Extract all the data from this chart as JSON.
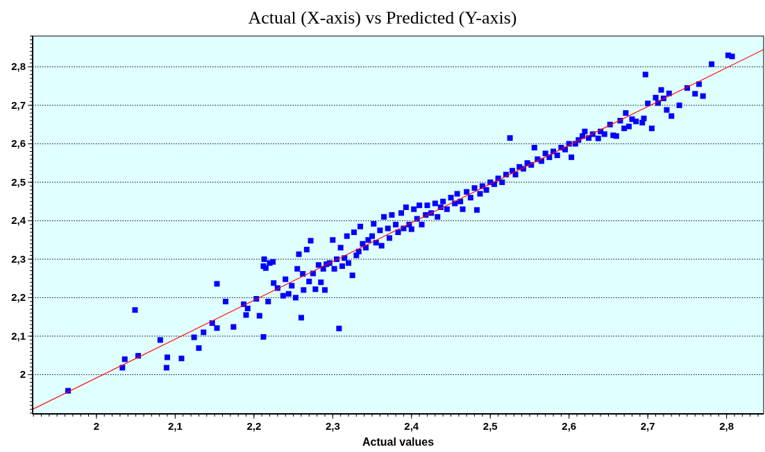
{
  "chart_data": {
    "type": "scatter",
    "title": "Actual (X-axis) vs Predicted (Y-axis)",
    "xlabel": "Actual values",
    "xlim": [
      1.919,
      2.847
    ],
    "ylim": [
      1.898,
      2.88
    ],
    "xticks": [
      {
        "value": 2,
        "label": "2"
      },
      {
        "value": 2.1,
        "label": "2,1"
      },
      {
        "value": 2.2,
        "label": "2,2"
      },
      {
        "value": 2.3,
        "label": "2,3"
      },
      {
        "value": 2.4,
        "label": "2,4"
      },
      {
        "value": 2.5,
        "label": "2,5"
      },
      {
        "value": 2.6,
        "label": "2,6"
      },
      {
        "value": 2.7,
        "label": "2,7"
      },
      {
        "value": 2.8,
        "label": "2,8"
      }
    ],
    "yticks": [
      {
        "value": 2,
        "label": "2"
      },
      {
        "value": 2.1,
        "label": "2,1"
      },
      {
        "value": 2.2,
        "label": "2,2"
      },
      {
        "value": 2.3,
        "label": "2,3"
      },
      {
        "value": 2.4,
        "label": "2,4"
      },
      {
        "value": 2.5,
        "label": "2,5"
      },
      {
        "value": 2.6,
        "label": "2,6"
      },
      {
        "value": 2.7,
        "label": "2,7"
      },
      {
        "value": 2.8,
        "label": "2,8"
      }
    ],
    "grid": "y",
    "series": [
      {
        "marker": "square",
        "color": "#0000ff",
        "x": [
          1.964,
          2.033,
          2.036,
          2.049,
          2.053,
          2.081,
          2.089,
          2.09,
          2.108,
          2.124,
          2.13,
          2.136,
          2.147,
          2.153,
          2.153,
          2.164,
          2.174,
          2.187,
          2.19,
          2.192,
          2.203,
          2.207,
          2.212,
          2.213,
          2.212,
          2.215,
          2.218,
          2.22,
          2.224,
          2.225,
          2.23,
          2.237,
          2.24,
          2.244,
          2.248,
          2.253,
          2.255,
          2.257,
          2.26,
          2.262,
          2.263,
          2.267,
          2.27,
          2.272,
          2.275,
          2.278,
          2.282,
          2.285,
          2.288,
          2.29,
          2.292,
          2.296,
          2.3,
          2.302,
          2.305,
          2.308,
          2.31,
          2.312,
          2.315,
          2.318,
          2.32,
          2.325,
          2.327,
          2.33,
          2.333,
          2.335,
          2.338,
          2.342,
          2.345,
          2.35,
          2.352,
          2.355,
          2.36,
          2.362,
          2.365,
          2.37,
          2.372,
          2.375,
          2.38,
          2.383,
          2.387,
          2.39,
          2.393,
          2.397,
          2.4,
          2.403,
          2.407,
          2.41,
          2.413,
          2.418,
          2.42,
          2.425,
          2.43,
          2.433,
          2.437,
          2.44,
          2.445,
          2.45,
          2.455,
          2.458,
          2.462,
          2.465,
          2.47,
          2.475,
          2.48,
          2.483,
          2.487,
          2.49,
          2.495,
          2.5,
          2.505,
          2.51,
          2.515,
          2.52,
          2.525,
          2.528,
          2.532,
          2.537,
          2.542,
          2.547,
          2.552,
          2.556,
          2.56,
          2.565,
          2.57,
          2.575,
          2.58,
          2.585,
          2.59,
          2.595,
          2.6,
          2.603,
          2.608,
          2.612,
          2.617,
          2.62,
          2.625,
          2.63,
          2.637,
          2.64,
          2.645,
          2.652,
          2.656,
          2.66,
          2.665,
          2.67,
          2.672,
          2.676,
          2.68,
          2.685,
          2.697,
          2.693,
          2.695,
          2.7,
          2.705,
          2.71,
          2.713,
          2.717,
          2.72,
          2.724,
          2.727,
          2.73,
          2.74,
          2.75,
          2.76,
          2.765,
          2.77,
          2.781,
          2.802,
          2.807
        ],
        "values": [
          1.958,
          2.018,
          2.04,
          2.168,
          2.049,
          2.09,
          2.018,
          2.045,
          2.042,
          2.097,
          2.069,
          2.11,
          2.134,
          2.121,
          2.236,
          2.19,
          2.124,
          2.183,
          2.155,
          2.172,
          2.197,
          2.153,
          2.098,
          2.3,
          2.282,
          2.277,
          2.19,
          2.29,
          2.293,
          2.238,
          2.225,
          2.205,
          2.248,
          2.21,
          2.231,
          2.2,
          2.275,
          2.313,
          2.148,
          2.262,
          2.22,
          2.325,
          2.242,
          2.348,
          2.263,
          2.222,
          2.285,
          2.24,
          2.275,
          2.22,
          2.287,
          2.29,
          2.35,
          2.275,
          2.3,
          2.12,
          2.33,
          2.282,
          2.303,
          2.36,
          2.29,
          2.258,
          2.37,
          2.31,
          2.32,
          2.385,
          2.34,
          2.33,
          2.35,
          2.36,
          2.392,
          2.343,
          2.375,
          2.335,
          2.41,
          2.38,
          2.355,
          2.415,
          2.39,
          2.37,
          2.42,
          2.38,
          2.435,
          2.39,
          2.378,
          2.43,
          2.405,
          2.44,
          2.39,
          2.415,
          2.44,
          2.42,
          2.445,
          2.41,
          2.435,
          2.45,
          2.43,
          2.46,
          2.445,
          2.47,
          2.45,
          2.43,
          2.475,
          2.46,
          2.485,
          2.428,
          2.47,
          2.49,
          2.48,
          2.5,
          2.495,
          2.51,
          2.5,
          2.52,
          2.615,
          2.53,
          2.52,
          2.54,
          2.535,
          2.55,
          2.545,
          2.59,
          2.56,
          2.555,
          2.575,
          2.565,
          2.58,
          2.57,
          2.59,
          2.585,
          2.6,
          2.565,
          2.6,
          2.61,
          2.62,
          2.632,
          2.615,
          2.625,
          2.614,
          2.632,
          2.625,
          2.65,
          2.622,
          2.62,
          2.66,
          2.64,
          2.68,
          2.645,
          2.664,
          2.658,
          2.78,
          2.655,
          2.666,
          2.705,
          2.64,
          2.72,
          2.706,
          2.74,
          2.718,
          2.688,
          2.731,
          2.672,
          2.7,
          2.745,
          2.73,
          2.755,
          2.724,
          2.807,
          2.83,
          2.827
        ]
      },
      {
        "type": "line",
        "line_style": "solid",
        "color": "#ff0000",
        "x": [
          1.919,
          2.847
        ],
        "values": [
          1.91,
          2.845
        ]
      }
    ]
  }
}
